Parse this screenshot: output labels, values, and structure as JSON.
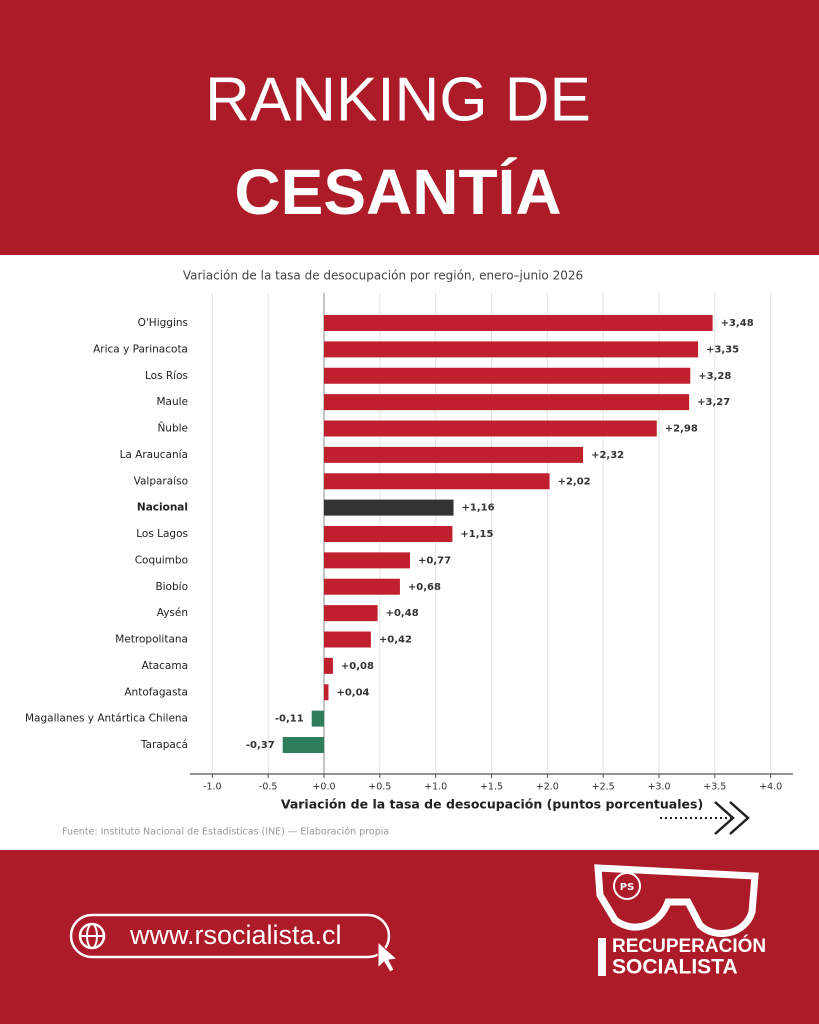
{
  "header": {
    "title_line1": "RANKING DE",
    "title_line2": "CESANTÍA"
  },
  "chart_data": {
    "type": "barh",
    "title": "Variación de la tasa de desocupación por región, enero–junio 2026",
    "x_label": "Variación de la tasa de desocupación (puntos porcentuales)",
    "source": "Fuente: Instituto Nacional de Estadísticas (INE) — Elaboración propia",
    "categories": [
      "O'Higgins",
      "Arica y Parinacota",
      "Los Ríos",
      "Maule",
      "Ñuble",
      "La Araucanía",
      "Valparaíso",
      "Nacional",
      "Los Lagos",
      "Coquimbo",
      "Biobío",
      "Aysén",
      "Metropolitana",
      "Atacama",
      "Antofagasta",
      "Magallanes y Antártica Chilena",
      "Tarapacá"
    ],
    "values": [
      3.48,
      3.35,
      3.28,
      3.27,
      2.98,
      2.32,
      2.02,
      1.16,
      1.15,
      0.77,
      0.68,
      0.48,
      0.42,
      0.08,
      0.04,
      -0.11,
      -0.37
    ],
    "value_labels": [
      "+3,48",
      "+3,35",
      "+3,28",
      "+3,27",
      "+2,98",
      "+2,32",
      "+2,02",
      "+1,16",
      "+1,15",
      "+0,77",
      "+0,68",
      "+0,48",
      "+0,42",
      "+0,08",
      "+0,04",
      "-0,11",
      "-0,37"
    ],
    "colors": [
      "#c0202e",
      "#c0202e",
      "#c0202e",
      "#c0202e",
      "#c0202e",
      "#c0202e",
      "#c0202e",
      "#333333",
      "#c0202e",
      "#c0202e",
      "#c0202e",
      "#c0202e",
      "#c0202e",
      "#c0202e",
      "#c0202e",
      "#2e7d5b",
      "#2e7d5b"
    ],
    "highlight": 7,
    "xlim": [
      -1.2,
      4.2
    ],
    "xticks": [
      {
        "value": -1.0,
        "label": "-1.0"
      },
      {
        "value": -0.5,
        "label": "-0.5"
      },
      {
        "value": 0,
        "label": "+0.0"
      },
      {
        "value": 0.5,
        "label": "+0.5"
      },
      {
        "value": 1.0,
        "label": "+1.0"
      },
      {
        "value": 1.5,
        "label": "+1.5"
      },
      {
        "value": 2.0,
        "label": "+2.0"
      },
      {
        "value": 2.5,
        "label": "+2.5"
      },
      {
        "value": 3.0,
        "label": "+3.0"
      },
      {
        "value": 3.5,
        "label": "+3.5"
      },
      {
        "value": 4.0,
        "label": "+4.0"
      }
    ],
    "grid": true
  },
  "footer": {
    "url": "www.rsocialista.cl",
    "logo_badge": "PS",
    "logo_line1": "RECUPERACIÓN",
    "logo_line2": "SOCIALISTA"
  }
}
